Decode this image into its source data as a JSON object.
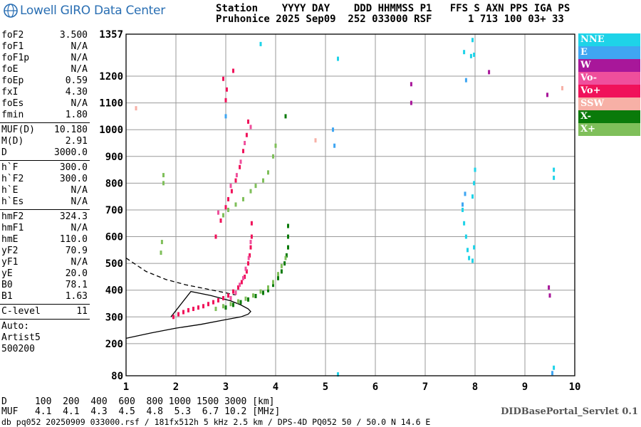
{
  "header": {
    "org": "Lowell GIRO Data Center",
    "line1": "Station    YYYY DAY    DDD HHMMSS P1   FFS S AXN PPS IGA PS",
    "line2": "Pruhonice 2025 Sep09  252 033000 RSF      1 713 100 03+ 33"
  },
  "params": [
    [
      {
        "label": "foF2",
        "value": "3.500"
      },
      {
        "label": "foF1",
        "value": "N/A"
      },
      {
        "label": "foF1p",
        "value": "N/A"
      },
      {
        "label": "foE",
        "value": "N/A"
      },
      {
        "label": "foEp",
        "value": "0.59"
      },
      {
        "label": "fxI",
        "value": "4.30"
      },
      {
        "label": "foEs",
        "value": "N/A"
      },
      {
        "label": "fmin",
        "value": "1.80"
      }
    ],
    [
      {
        "label": "MUF(D)",
        "value": "10.180"
      },
      {
        "label": "M(D)",
        "value": "2.91"
      },
      {
        "label": "D",
        "value": "3000.0"
      }
    ],
    [
      {
        "label": "h`F",
        "value": "300.0"
      },
      {
        "label": "h`F2",
        "value": "300.0"
      },
      {
        "label": "h`E",
        "value": "N/A"
      },
      {
        "label": "h`Es",
        "value": "N/A"
      }
    ],
    [
      {
        "label": "hmF2",
        "value": "324.3"
      },
      {
        "label": "hmF1",
        "value": "N/A"
      },
      {
        "label": "hmE",
        "value": "110.0"
      },
      {
        "label": "yF2",
        "value": "70.9"
      },
      {
        "label": "yF1",
        "value": "N/A"
      },
      {
        "label": "yE",
        "value": "20.0"
      },
      {
        "label": "B0",
        "value": "78.1"
      },
      {
        "label": "B1",
        "value": "1.63"
      }
    ],
    [
      {
        "label": "C-level",
        "value": "11"
      }
    ]
  ],
  "auto": {
    "line1": "Auto:",
    "line2": "Artist5",
    "line3": "500200"
  },
  "legend": [
    {
      "label": "NNE",
      "color": "#1ed3e8"
    },
    {
      "label": "E",
      "color": "#3fa6f2"
    },
    {
      "label": "W",
      "color": "#a8179a"
    },
    {
      "label": "Vo-",
      "color": "#ef4f9c"
    },
    {
      "label": "Vo+",
      "color": "#f0125a"
    },
    {
      "label": "SSW",
      "color": "#f7b0a6"
    },
    {
      "label": "X-",
      "color": "#0a7a0a"
    },
    {
      "label": "X+",
      "color": "#7fbf5a"
    }
  ],
  "muf_table": {
    "row1": "D     100  200  400  600  800 1000 1500 3000 [km]",
    "row2": "MUF   4.1  4.1  4.3  4.5  4.8  5.3  6.7 10.2 [MHz]"
  },
  "servlet": "DIDBasePortal_Servlet 0.1",
  "footer": "db pq052 20250909 033000.rsf / 181fx512h 5 kHz 2.5 km / DPS-4D PQ052 50 / 50.0 N 14.6 E",
  "chart_data": {
    "type": "scatter",
    "xlim": [
      1,
      10
    ],
    "ylim": [
      80,
      1357
    ],
    "x_ticks": [
      1,
      2,
      3,
      4,
      5,
      6,
      7,
      8,
      9,
      10
    ],
    "y_ticks": [
      80,
      200,
      300,
      400,
      500,
      600,
      700,
      800,
      900,
      1000,
      1100,
      1200,
      1357
    ],
    "grid": true,
    "series": [
      {
        "name": "Vo+",
        "color": "#f0125a",
        "points": [
          [
            1.95,
            300
          ],
          [
            2.05,
            310
          ],
          [
            2.15,
            318
          ],
          [
            2.25,
            325
          ],
          [
            2.35,
            330
          ],
          [
            2.45,
            335
          ],
          [
            2.55,
            340
          ],
          [
            2.65,
            348
          ],
          [
            2.75,
            355
          ],
          [
            2.85,
            362
          ],
          [
            2.95,
            370
          ],
          [
            3.05,
            380
          ],
          [
            3.15,
            395
          ],
          [
            3.25,
            410
          ],
          [
            3.32,
            430
          ],
          [
            3.38,
            450
          ],
          [
            3.42,
            470
          ],
          [
            3.45,
            500
          ],
          [
            3.48,
            530
          ],
          [
            3.5,
            560
          ],
          [
            3.52,
            600
          ],
          [
            3.52,
            650
          ],
          [
            2.8,
            600
          ],
          [
            2.9,
            660
          ],
          [
            3.0,
            710
          ],
          [
            3.05,
            740
          ],
          [
            3.12,
            770
          ],
          [
            3.2,
            810
          ],
          [
            3.28,
            860
          ],
          [
            3.35,
            920
          ],
          [
            3.42,
            980
          ],
          [
            3.45,
            1030
          ],
          [
            3.0,
            1110
          ],
          [
            3.02,
            1150
          ],
          [
            2.95,
            1190
          ],
          [
            3.15,
            1220
          ]
        ]
      },
      {
        "name": "Vo-",
        "color": "#ef4f9c",
        "points": [
          [
            3.1,
            370
          ],
          [
            3.2,
            390
          ],
          [
            3.28,
            420
          ],
          [
            3.35,
            445
          ],
          [
            3.4,
            480
          ],
          [
            3.46,
            520
          ],
          [
            3.5,
            580
          ],
          [
            2.85,
            690
          ],
          [
            3.1,
            790
          ],
          [
            3.22,
            830
          ],
          [
            3.3,
            880
          ],
          [
            3.38,
            950
          ],
          [
            3.5,
            1010
          ]
        ]
      },
      {
        "name": "X-",
        "color": "#0a7a0a",
        "points": [
          [
            3.0,
            335
          ],
          [
            3.15,
            345
          ],
          [
            3.3,
            355
          ],
          [
            3.45,
            365
          ],
          [
            3.6,
            378
          ],
          [
            3.75,
            390
          ],
          [
            3.85,
            400
          ],
          [
            3.95,
            420
          ],
          [
            4.05,
            445
          ],
          [
            4.12,
            470
          ],
          [
            4.18,
            500
          ],
          [
            4.22,
            530
          ],
          [
            4.25,
            560
          ],
          [
            4.25,
            600
          ],
          [
            4.25,
            640
          ],
          [
            4.2,
            1050
          ]
        ]
      },
      {
        "name": "X+",
        "color": "#7fbf5a",
        "points": [
          [
            2.8,
            330
          ],
          [
            2.95,
            340
          ],
          [
            3.1,
            348
          ],
          [
            3.25,
            358
          ],
          [
            3.4,
            368
          ],
          [
            3.55,
            380
          ],
          [
            3.7,
            395
          ],
          [
            3.85,
            410
          ],
          [
            3.95,
            430
          ],
          [
            4.05,
            460
          ],
          [
            4.12,
            490
          ],
          [
            4.2,
            520
          ],
          [
            2.95,
            680
          ],
          [
            3.05,
            700
          ],
          [
            3.2,
            720
          ],
          [
            3.35,
            740
          ],
          [
            3.5,
            770
          ],
          [
            3.6,
            790
          ],
          [
            3.75,
            810
          ],
          [
            3.85,
            840
          ],
          [
            3.95,
            900
          ],
          [
            4.0,
            940
          ],
          [
            1.75,
            800
          ],
          [
            1.75,
            830
          ],
          [
            1.7,
            540
          ],
          [
            1.72,
            580
          ]
        ]
      },
      {
        "name": "NNE",
        "color": "#1ed3e8",
        "points": [
          [
            3.7,
            1320
          ],
          [
            5.25,
            1265
          ],
          [
            7.78,
            1290
          ],
          [
            7.92,
            1275
          ],
          [
            7.98,
            1280
          ],
          [
            7.95,
            1335
          ],
          [
            7.75,
            700
          ],
          [
            7.78,
            650
          ],
          [
            7.82,
            600
          ],
          [
            7.85,
            550
          ],
          [
            7.88,
            520
          ],
          [
            7.95,
            750
          ],
          [
            7.98,
            800
          ],
          [
            8.0,
            850
          ],
          [
            7.98,
            560
          ],
          [
            7.95,
            510
          ],
          [
            9.58,
            850
          ],
          [
            9.58,
            820
          ],
          [
            9.58,
            110
          ],
          [
            5.25,
            85
          ]
        ]
      },
      {
        "name": "E",
        "color": "#3fa6f2",
        "points": [
          [
            7.75,
            720
          ],
          [
            7.8,
            760
          ],
          [
            3.0,
            1050
          ],
          [
            5.15,
            1000
          ],
          [
            5.18,
            940
          ],
          [
            7.82,
            1185
          ],
          [
            9.55,
            90
          ]
        ]
      },
      {
        "name": "W",
        "color": "#a8179a",
        "points": [
          [
            6.72,
            1170
          ],
          [
            6.72,
            1100
          ],
          [
            9.45,
            1130
          ],
          [
            9.48,
            410
          ],
          [
            9.5,
            380
          ],
          [
            8.28,
            1215
          ]
        ]
      },
      {
        "name": "SSW",
        "color": "#f7b0a6",
        "points": [
          [
            1.2,
            1080
          ],
          [
            4.8,
            960
          ],
          [
            9.75,
            1155
          ]
        ]
      }
    ],
    "curves": [
      {
        "name": "F2 profile",
        "style": "solid",
        "points": [
          [
            1.0,
            220
          ],
          [
            1.5,
            240
          ],
          [
            2.0,
            258
          ],
          [
            2.5,
            272
          ],
          [
            3.0,
            290
          ],
          [
            3.3,
            300
          ],
          [
            3.45,
            310
          ],
          [
            3.5,
            320
          ],
          [
            3.45,
            330
          ],
          [
            3.3,
            345
          ],
          [
            3.1,
            360
          ],
          [
            2.7,
            380
          ],
          [
            2.3,
            395
          ],
          [
            1.9,
            300
          ]
        ]
      },
      {
        "name": "Extrapolated",
        "style": "dashed",
        "points": [
          [
            1.0,
            520
          ],
          [
            1.4,
            470
          ],
          [
            1.8,
            440
          ],
          [
            2.2,
            420
          ],
          [
            2.6,
            405
          ],
          [
            3.0,
            390
          ],
          [
            3.2,
            382
          ]
        ]
      }
    ]
  }
}
